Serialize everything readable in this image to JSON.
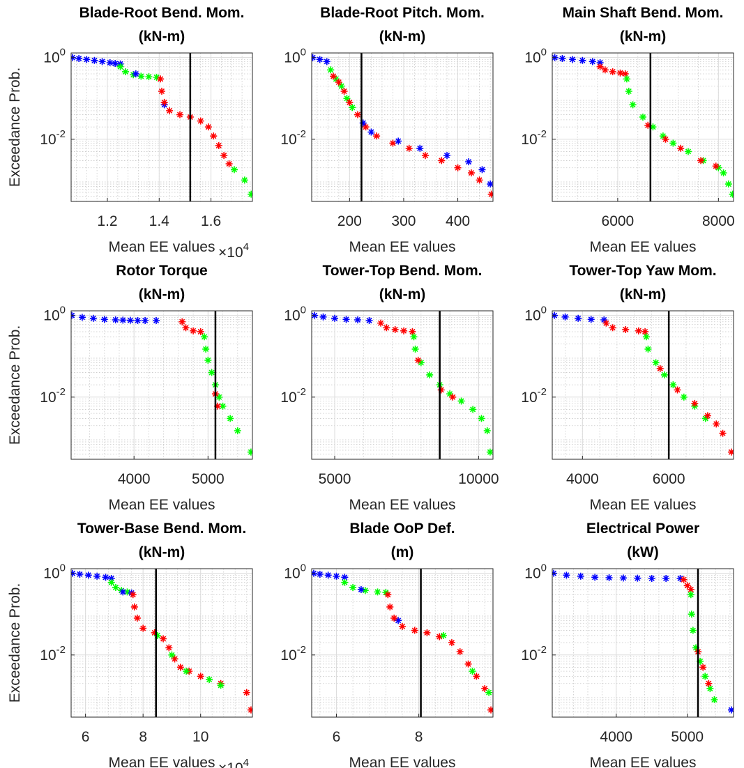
{
  "figure": {
    "ylabel": "Exceedance Prob.",
    "xlabel": "Mean EE values",
    "series_colors": {
      "blue": "#0000ff",
      "red": "#ff0000",
      "green": "#00ff00"
    },
    "marker": "asterisk",
    "yscale": "log",
    "ylim": [
      0.0003,
      1.3
    ],
    "yticks": [
      {
        "value": 1,
        "base": "10",
        "exp": "0"
      },
      {
        "value": 0.01,
        "base": "10",
        "exp": "-2"
      }
    ],
    "grid": "on (major and minor)"
  },
  "chart_data": [
    {
      "type": "scatter",
      "title": [
        "Blade-Root Bend. Mom.",
        "(kN-m)"
      ],
      "xlim": [
        10600,
        17600
      ],
      "xticks": [
        12000,
        14000,
        16000
      ],
      "xtick_labels": [
        "1.2",
        "1.4",
        "1.6"
      ],
      "x_multiplier": {
        "base": "10",
        "exp": "4"
      },
      "vline": 15200,
      "series": [
        {
          "color": "blue",
          "x": [
            10650,
            10900,
            11200,
            11500,
            11800,
            12100,
            12300,
            12500
          ],
          "y": [
            1.0,
            0.95,
            0.9,
            0.85,
            0.8,
            0.75,
            0.72,
            0.7
          ]
        },
        {
          "color": "green",
          "x": [
            12500,
            12700,
            13000,
            13300,
            13600,
            13900
          ],
          "y": [
            0.6,
            0.45,
            0.38,
            0.35,
            0.34,
            0.33
          ]
        },
        {
          "color": "blue",
          "x": [
            13100,
            14200
          ],
          "y": [
            0.4,
            0.07
          ]
        },
        {
          "color": "red",
          "x": [
            14050,
            14100,
            14200,
            14400,
            14800,
            15200,
            15600,
            15900,
            16100,
            16300,
            16500,
            16700
          ],
          "y": [
            0.3,
            0.15,
            0.08,
            0.05,
            0.04,
            0.035,
            0.028,
            0.02,
            0.012,
            0.007,
            0.004,
            0.0025
          ]
        },
        {
          "color": "green",
          "x": [
            16900,
            17300,
            17550
          ],
          "y": [
            0.0018,
            0.001,
            0.00045
          ]
        }
      ]
    },
    {
      "type": "scatter",
      "title": [
        "Blade-Root Pitch. Mom.",
        "(kN-m)"
      ],
      "xlim": [
        130,
        465
      ],
      "xticks": [
        200,
        300,
        400
      ],
      "xtick_labels": [
        "200",
        "300",
        "400"
      ],
      "vline": 222,
      "series": [
        {
          "color": "blue",
          "x": [
            132,
            145,
            158
          ],
          "y": [
            1.0,
            0.9,
            0.8
          ]
        },
        {
          "color": "green",
          "x": [
            165,
            175,
            185,
            195,
            205
          ],
          "y": [
            0.5,
            0.3,
            0.2,
            0.1,
            0.06
          ]
        },
        {
          "color": "red",
          "x": [
            170,
            180,
            190,
            200,
            215,
            230,
            250,
            280,
            310,
            340,
            370,
            400,
            425,
            440,
            462
          ],
          "y": [
            0.35,
            0.25,
            0.15,
            0.08,
            0.04,
            0.02,
            0.012,
            0.008,
            0.006,
            0.004,
            0.003,
            0.002,
            0.0015,
            0.001,
            0.00045
          ]
        },
        {
          "color": "blue",
          "x": [
            225,
            240,
            290,
            330,
            380,
            420,
            445,
            460
          ],
          "y": [
            0.025,
            0.015,
            0.009,
            0.006,
            0.004,
            0.0028,
            0.0018,
            0.0008
          ]
        }
      ]
    },
    {
      "type": "scatter",
      "title": [
        "Main Shaft Bend. Mom.",
        "(kN-m)"
      ],
      "xlim": [
        4700,
        8300
      ],
      "xticks": [
        6000,
        8000
      ],
      "xtick_labels": [
        "6000",
        "8000"
      ],
      "vline": 6650,
      "series": [
        {
          "color": "blue",
          "x": [
            4750,
            4900,
            5100,
            5300,
            5500,
            5650
          ],
          "y": [
            1.0,
            0.95,
            0.9,
            0.85,
            0.8,
            0.75
          ]
        },
        {
          "color": "red",
          "x": [
            5650,
            5750,
            5900,
            6050,
            6150
          ],
          "y": [
            0.6,
            0.5,
            0.45,
            0.42,
            0.4
          ]
        },
        {
          "color": "green",
          "x": [
            6180,
            6220,
            6300,
            6500,
            6700,
            6900,
            7100,
            7400,
            7700,
            8000,
            8100,
            8200,
            8280
          ],
          "y": [
            0.3,
            0.15,
            0.07,
            0.035,
            0.02,
            0.012,
            0.008,
            0.005,
            0.003,
            0.002,
            0.0015,
            0.0008,
            0.00045
          ]
        },
        {
          "color": "red",
          "x": [
            6600,
            6950,
            7250,
            7650,
            7950
          ],
          "y": [
            0.022,
            0.01,
            0.006,
            0.003,
            0.0022
          ]
        }
      ]
    },
    {
      "type": "scatter",
      "title": [
        "Rotor Torque",
        "(kN-m)"
      ],
      "xlim": [
        3150,
        5600
      ],
      "xticks": [
        4000,
        5000
      ],
      "xtick_labels": [
        "4000",
        "5000"
      ],
      "vline": 5100,
      "series": [
        {
          "color": "blue",
          "x": [
            3160,
            3300,
            3450,
            3600,
            3750,
            3850,
            3950,
            4050,
            4150,
            4300
          ],
          "y": [
            1.0,
            0.9,
            0.85,
            0.8,
            0.78,
            0.77,
            0.76,
            0.75,
            0.75,
            0.75
          ]
        },
        {
          "color": "red",
          "x": [
            4650,
            4700,
            4800,
            4900
          ],
          "y": [
            0.7,
            0.5,
            0.42,
            0.4
          ]
        },
        {
          "color": "green",
          "x": [
            4950,
            4970,
            5000,
            5050,
            5100,
            5150,
            5200,
            5300,
            5400,
            5580
          ],
          "y": [
            0.3,
            0.15,
            0.08,
            0.04,
            0.02,
            0.01,
            0.006,
            0.003,
            0.0015,
            0.00045
          ]
        },
        {
          "color": "red",
          "x": [
            5100,
            5130
          ],
          "y": [
            0.012,
            0.006
          ]
        }
      ]
    },
    {
      "type": "scatter",
      "title": [
        "Tower-Top Bend. Mom.",
        "(kN-m)"
      ],
      "xlim": [
        4200,
        10500
      ],
      "xticks": [
        5000,
        10000
      ],
      "xtick_labels": [
        "5000",
        "10000"
      ],
      "vline": 8650,
      "series": [
        {
          "color": "blue",
          "x": [
            4300,
            4600,
            5000,
            5400,
            5800,
            6200
          ],
          "y": [
            1.0,
            0.92,
            0.85,
            0.8,
            0.78,
            0.75
          ]
        },
        {
          "color": "red",
          "x": [
            6600,
            6800,
            7100,
            7400,
            7700
          ],
          "y": [
            0.65,
            0.5,
            0.45,
            0.42,
            0.4
          ]
        },
        {
          "color": "green",
          "x": [
            7750,
            7800,
            8000,
            8300,
            8650,
            9000,
            9400,
            9800,
            10100,
            10300,
            10400
          ],
          "y": [
            0.3,
            0.15,
            0.07,
            0.035,
            0.02,
            0.012,
            0.008,
            0.005,
            0.003,
            0.0015,
            0.00045
          ]
        },
        {
          "color": "red",
          "x": [
            7900,
            8700,
            9100
          ],
          "y": [
            0.08,
            0.015,
            0.01
          ]
        }
      ]
    },
    {
      "type": "scatter",
      "title": [
        "Tower-Top Yaw Mom.",
        "(kN-m)"
      ],
      "xlim": [
        3300,
        7500
      ],
      "xticks": [
        4000,
        6000
      ],
      "xtick_labels": [
        "4000",
        "6000"
      ],
      "vline": 6000,
      "series": [
        {
          "color": "blue",
          "x": [
            3350,
            3600,
            3900,
            4200,
            4500
          ],
          "y": [
            1.0,
            0.92,
            0.85,
            0.8,
            0.78
          ]
        },
        {
          "color": "red",
          "x": [
            4550,
            4700,
            5000,
            5300,
            5450
          ],
          "y": [
            0.65,
            0.5,
            0.45,
            0.42,
            0.4
          ]
        },
        {
          "color": "green",
          "x": [
            5480,
            5520,
            5700,
            5900,
            6100,
            6350,
            6600,
            6850
          ],
          "y": [
            0.3,
            0.15,
            0.07,
            0.035,
            0.02,
            0.01,
            0.006,
            0.003
          ]
        },
        {
          "color": "red",
          "x": [
            5800,
            6200,
            6600,
            6900,
            7100,
            7250,
            7450
          ],
          "y": [
            0.05,
            0.015,
            0.007,
            0.0035,
            0.0022,
            0.0013,
            0.00045
          ]
        }
      ]
    },
    {
      "type": "scatter",
      "title": [
        "Tower-Base Bend. Mom.",
        "(kN-m)"
      ],
      "xlim": [
        55000,
        118000
      ],
      "xticks": [
        60000,
        80000,
        100000
      ],
      "xtick_labels": [
        "6",
        "8",
        "10"
      ],
      "x_multiplier": {
        "base": "10",
        "exp": "4"
      },
      "vline": 84500,
      "series": [
        {
          "color": "blue",
          "x": [
            55500,
            58000,
            61000,
            64000,
            67000,
            69000
          ],
          "y": [
            1.0,
            0.95,
            0.9,
            0.85,
            0.8,
            0.75
          ]
        },
        {
          "color": "green",
          "x": [
            69000,
            70500,
            72500,
            74500
          ],
          "y": [
            0.6,
            0.45,
            0.38,
            0.35
          ]
        },
        {
          "color": "blue",
          "x": [
            73000,
            76000
          ],
          "y": [
            0.35,
            0.33
          ]
        },
        {
          "color": "red",
          "x": [
            76500,
            77000,
            78000,
            80000,
            84000,
            87000,
            89000,
            91000,
            93000,
            96000,
            100000,
            107000,
            116000,
            117500
          ],
          "y": [
            0.3,
            0.15,
            0.08,
            0.045,
            0.035,
            0.025,
            0.015,
            0.008,
            0.005,
            0.004,
            0.003,
            0.002,
            0.0012,
            0.00045
          ]
        },
        {
          "color": "green",
          "x": [
            85000,
            90000,
            95000,
            103000,
            107000
          ],
          "y": [
            0.03,
            0.01,
            0.004,
            0.0025,
            0.0018
          ]
        }
      ]
    },
    {
      "type": "scatter",
      "title": [
        "Blade OoP Def.",
        "(m)"
      ],
      "xlim": [
        5.4,
        9.8
      ],
      "xticks": [
        6,
        8
      ],
      "xtick_labels": [
        "6",
        "8"
      ],
      "vline": 8.05,
      "series": [
        {
          "color": "blue",
          "x": [
            5.45,
            5.6,
            5.8,
            6.0,
            6.2
          ],
          "y": [
            1.0,
            0.95,
            0.9,
            0.85,
            0.8
          ]
        },
        {
          "color": "green",
          "x": [
            6.2,
            6.4,
            6.7,
            7.0,
            7.2
          ],
          "y": [
            0.6,
            0.45,
            0.38,
            0.35,
            0.34
          ]
        },
        {
          "color": "blue",
          "x": [
            6.6,
            7.5
          ],
          "y": [
            0.4,
            0.07
          ]
        },
        {
          "color": "red",
          "x": [
            7.25,
            7.3,
            7.4,
            7.6,
            7.9,
            8.2,
            8.5,
            8.8,
            9.0,
            9.2,
            9.4,
            9.6,
            9.75
          ],
          "y": [
            0.3,
            0.15,
            0.08,
            0.05,
            0.04,
            0.035,
            0.028,
            0.02,
            0.012,
            0.006,
            0.003,
            0.0015,
            0.00045
          ]
        },
        {
          "color": "green",
          "x": [
            8.6,
            9.3,
            9.7
          ],
          "y": [
            0.03,
            0.004,
            0.0012
          ]
        }
      ]
    },
    {
      "type": "scatter",
      "title": [
        "Electrical Power",
        "(kW)"
      ],
      "xlim": [
        3100,
        5650
      ],
      "xticks": [
        4000,
        5000
      ],
      "xtick_labels": [
        "4000",
        "5000"
      ],
      "vline": 5150,
      "series": [
        {
          "color": "blue",
          "x": [
            3120,
            3300,
            3500,
            3700,
            3900,
            4100,
            4300,
            4500,
            4700,
            4900,
            5620
          ],
          "y": [
            1.0,
            0.9,
            0.85,
            0.8,
            0.78,
            0.77,
            0.76,
            0.75,
            0.75,
            0.75,
            0.00045
          ]
        },
        {
          "color": "red",
          "x": [
            4950,
            5000,
            5050
          ],
          "y": [
            0.7,
            0.5,
            0.4
          ]
        },
        {
          "color": "green",
          "x": [
            5050,
            5060,
            5080,
            5120,
            5180,
            5250,
            5320,
            5380
          ],
          "y": [
            0.3,
            0.1,
            0.04,
            0.015,
            0.007,
            0.003,
            0.0015,
            0.0008
          ]
        },
        {
          "color": "red",
          "x": [
            5150,
            5220,
            5300
          ],
          "y": [
            0.012,
            0.005,
            0.002
          ]
        }
      ]
    }
  ]
}
